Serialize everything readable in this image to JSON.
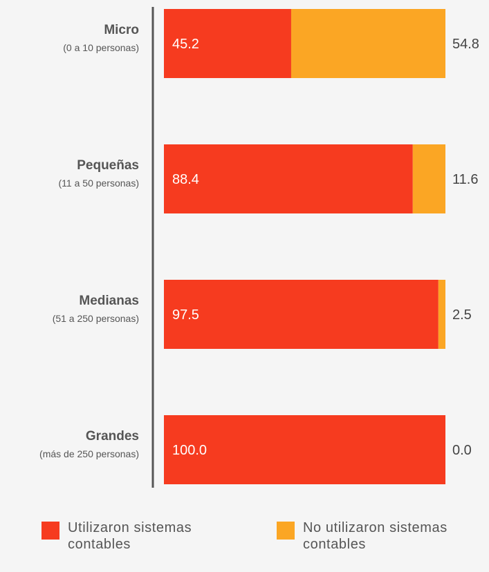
{
  "chart_data": {
    "type": "bar",
    "orientation": "horizontal",
    "stacked": true,
    "categories": [
      {
        "name": "Micro",
        "sub": "(0 a 10 personas)"
      },
      {
        "name": "Pequeñas",
        "sub": "(11 a 50 personas)"
      },
      {
        "name": "Medianas",
        "sub": "(51 a 250 personas)"
      },
      {
        "name": "Grandes",
        "sub": "(más de 250 personas)"
      }
    ],
    "series": [
      {
        "name": "Utilizaron sistemas contables",
        "values": [
          45.2,
          88.4,
          97.5,
          100.0
        ],
        "labels": [
          "45.2",
          "88.4",
          "97.5",
          "100.0"
        ],
        "color": "#f63b1f"
      },
      {
        "name": "No utilizaron sistemas contables",
        "values": [
          54.8,
          11.6,
          2.5,
          0.0
        ],
        "labels": [
          "54.8",
          "11.6",
          "2.5",
          "0.0"
        ],
        "color": "#fba624"
      }
    ],
    "xlim": [
      0,
      100
    ],
    "grid": false,
    "legend_position": "bottom"
  },
  "legend": {
    "used_line1": "Utilizaron sistemas",
    "used_line2": "contables",
    "unused_line1": "No utilizaron sistemas",
    "unused_line2": "contables"
  },
  "colors": {
    "used": "#f63b1f",
    "unused": "#fba624",
    "axis": "#555555",
    "background": "#f5f5f5"
  }
}
